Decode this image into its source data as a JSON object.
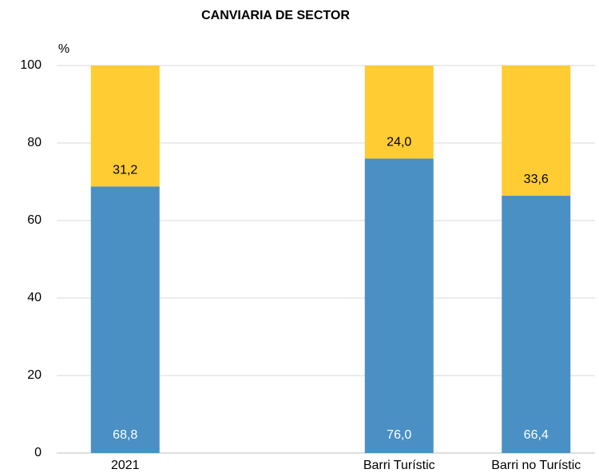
{
  "chart_data": {
    "type": "stacked_bar",
    "title": "CANVIARIA DE SECTOR",
    "y_label": "%",
    "categories": [
      "2021",
      null,
      "Barri Turístic",
      "Barri no Turístic"
    ],
    "series": [
      {
        "color": "#4a90c4",
        "label_color": "#ffffff",
        "values": [
          68.8,
          null,
          76.0,
          66.4
        ],
        "value_labels": [
          "68,8",
          null,
          "76,0",
          "66,4"
        ]
      },
      {
        "color": "#ffcc33",
        "label_color": "#000000",
        "values": [
          31.2,
          null,
          24.0,
          33.6
        ],
        "value_labels": [
          "31,2",
          null,
          "24,0",
          "33,6"
        ]
      }
    ],
    "ylim": [
      0,
      100
    ],
    "yticks": [
      0,
      20,
      40,
      60,
      80,
      100
    ],
    "grid": true
  }
}
